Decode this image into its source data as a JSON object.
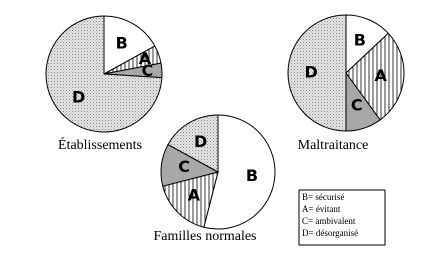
{
  "chart_data": [
    {
      "type": "pie",
      "title": "Établissements",
      "categories": [
        "B",
        "A",
        "C",
        "D"
      ],
      "values": [
        17,
        5,
        4,
        74
      ],
      "fills": [
        "#ffffff",
        "hatch",
        "#a8a8a8",
        "dots"
      ]
    },
    {
      "type": "pie",
      "title": "Maltraitance",
      "categories": [
        "B",
        "A",
        "C",
        "D"
      ],
      "values": [
        13,
        27,
        10,
        50
      ],
      "fills": [
        "#ffffff",
        "hatch",
        "#a8a8a8",
        "dots"
      ]
    },
    {
      "type": "pie",
      "title": "Familles normales",
      "categories": [
        "B",
        "A",
        "C",
        "D"
      ],
      "values": [
        54,
        17,
        12,
        17
      ],
      "fills": [
        "#ffffff",
        "hatch",
        "#a8a8a8",
        "dots"
      ]
    }
  ],
  "legend": [
    "B= sécurisé",
    "A= évitant",
    "C= ambivalent",
    "D= désorganisé"
  ]
}
